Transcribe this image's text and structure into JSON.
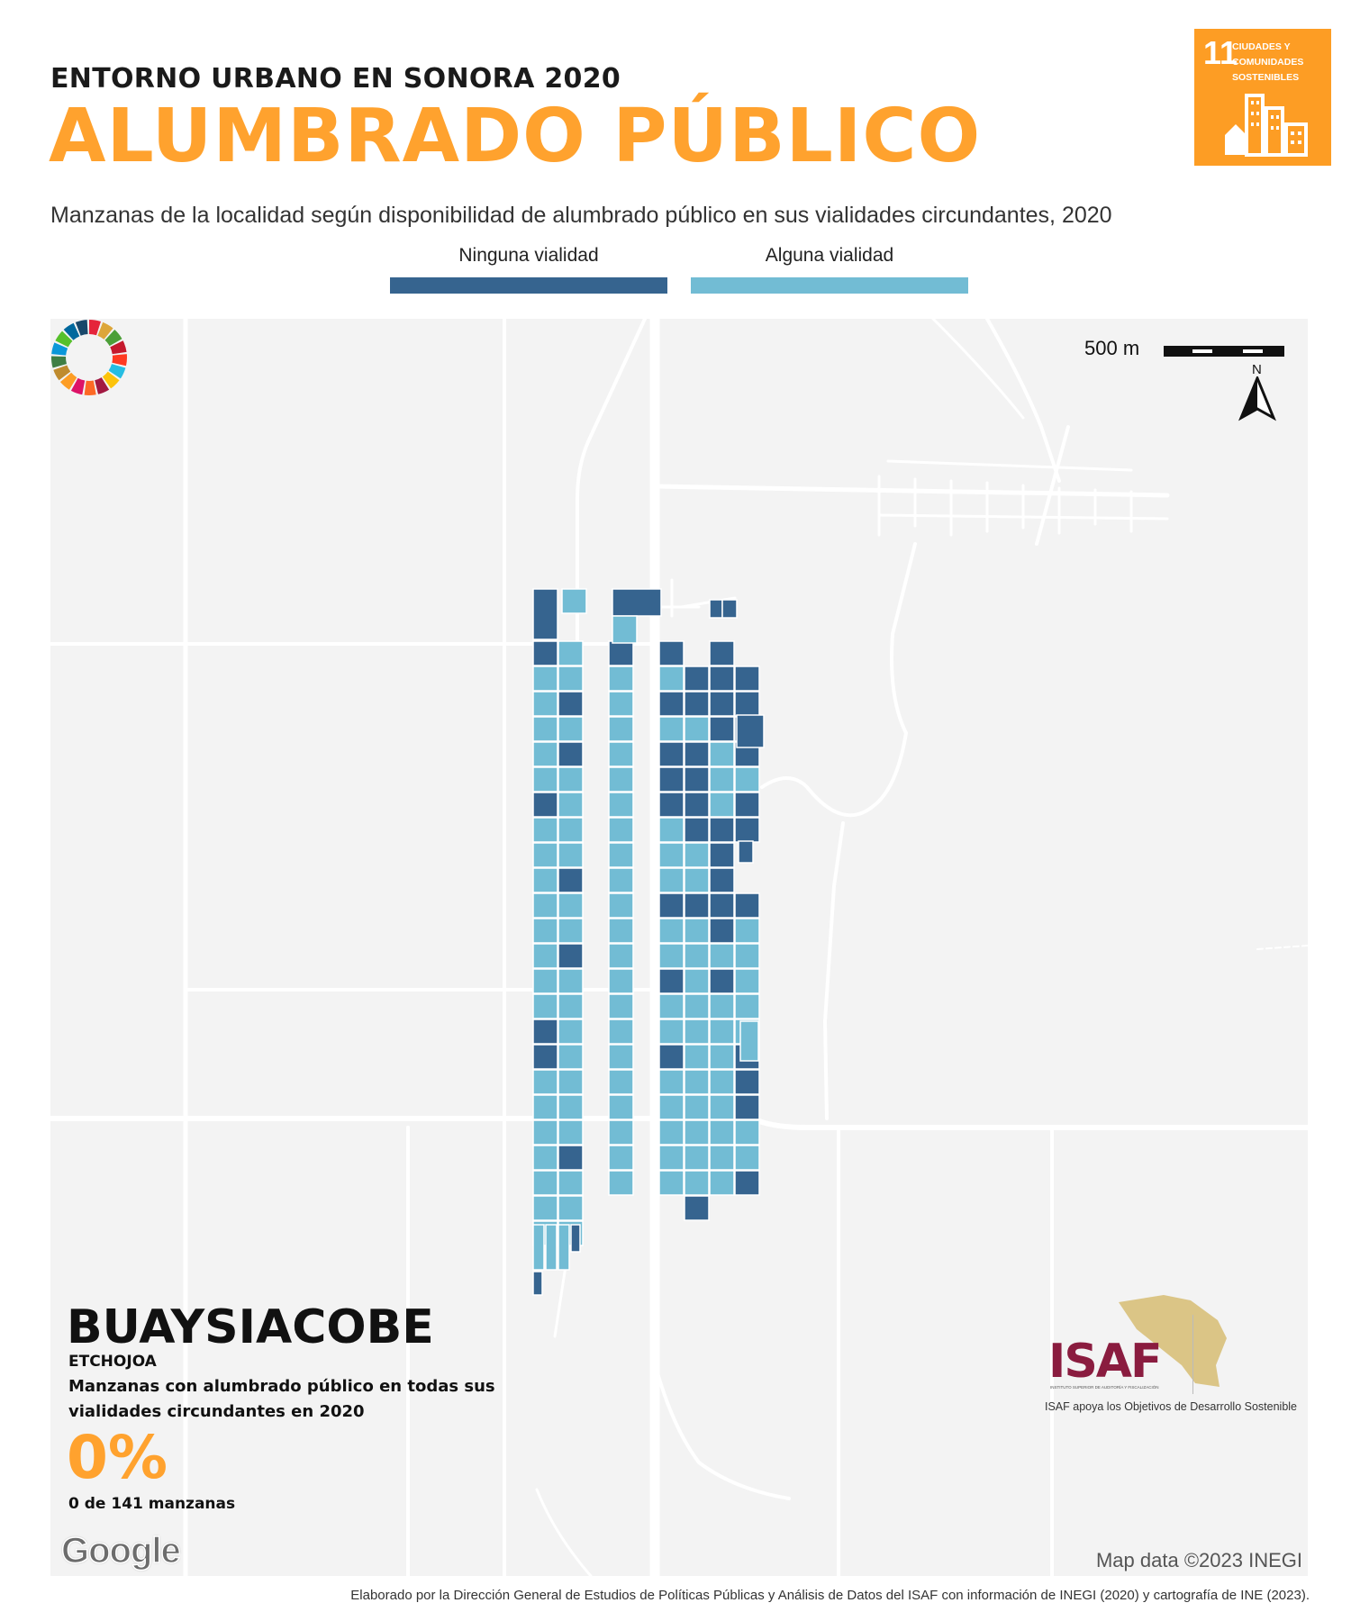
{
  "header": {
    "kicker": "ENTORNO URBANO EN SONORA 2020",
    "title": "ALUMBRADO PÚBLICO",
    "subtitle": "Manzanas de la localidad según disponibilidad de alumbrado público en sus vialidades circundantes, 2020"
  },
  "ods_badge": {
    "number": "11",
    "text": "CIUDADES Y COMUNIDADES SOSTENIBLES",
    "color": "#fd9d24",
    "icon": "city-buildings-icon"
  },
  "legend": {
    "none": {
      "label": "Ninguna vialidad",
      "color": "#36648f"
    },
    "some": {
      "label": "Alguna vialidad",
      "color": "#72bcd4"
    }
  },
  "map": {
    "scale_label": "500 m",
    "north_label": "N",
    "attribution": "Map data ©2023 INEGI",
    "google_logo": "Google",
    "background_color": "#f3f3f3",
    "road_color": "#ffffff"
  },
  "locality": {
    "name": "BUAYSIACOBE",
    "municipality": "ETCHOJOA",
    "description": "Manzanas con alumbrado público en todas sus vialidades circundantes en 2020",
    "percent": "0%",
    "count": "0 de 141 manzanas"
  },
  "logos": {
    "isaf": "ISAF",
    "isaf_small": "INSTITUTO SUPERIOR DE AUDITORÍA Y FISCALIZACIÓN",
    "isaf_caption": "ISAF apoya los Objetivos de Desarrollo Sostenible",
    "isaf_color": "#8a1c3f"
  },
  "footer": "Elaborado por la Dirección General de Estudios de Políticas Públicas y Análisis de Datos del ISAF con información de INEGI (2020) y cartografía de INE (2023)."
}
